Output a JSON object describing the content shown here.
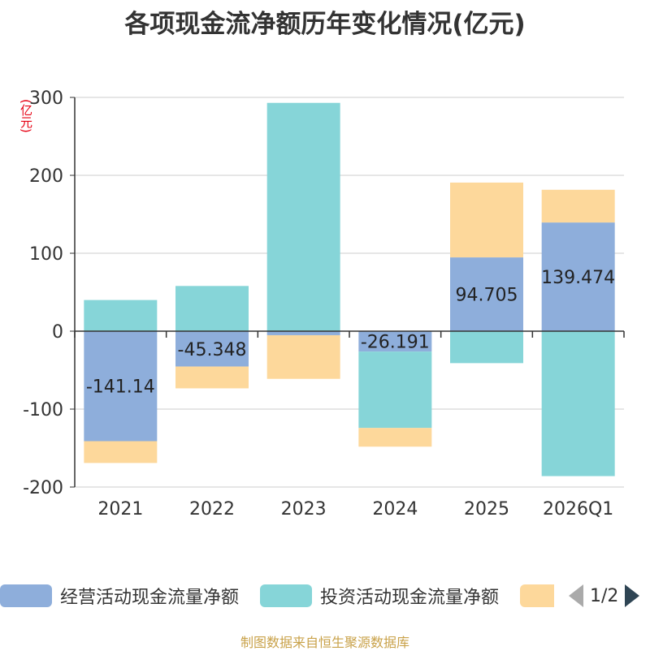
{
  "chart_data": {
    "type": "bar",
    "stacked": true,
    "title": "各项现金流净额历年变化情况(亿元)",
    "ylabel": "(亿元)",
    "categories": [
      "2021",
      "2022",
      "2023",
      "2024",
      "2025",
      "2026Q1"
    ],
    "ylim": [
      -200,
      300
    ],
    "yticks": [
      -200,
      -100,
      0,
      100,
      200,
      300
    ],
    "series": [
      {
        "name": "经营活动现金流量净额",
        "color": "#8eaedb",
        "values": [
          -141.14,
          -45.348,
          -5.17,
          -26.191,
          94.705,
          139.474
        ],
        "labels": [
          "-141.14",
          "-45.348",
          "",
          "-26.191",
          "94.705",
          "139.474"
        ]
      },
      {
        "name": "投资活动现金流量净额",
        "color": "#86d5d8",
        "values": [
          40,
          58,
          293,
          -98,
          -41,
          -186
        ]
      },
      {
        "name": "",
        "color": "#fdd89b",
        "values": [
          -28,
          -28,
          -56,
          -24,
          96,
          42
        ]
      }
    ]
  },
  "legend": {
    "items": [
      {
        "label": "经营活动现金流量净额",
        "color": "#8eaedb"
      },
      {
        "label": "投资活动现金流量净额",
        "color": "#86d5d8"
      },
      {
        "label": "",
        "color": "#fdd89b"
      }
    ],
    "page": "1/2"
  },
  "footer": {
    "source": "制图数据来自恒生聚源数据库"
  }
}
